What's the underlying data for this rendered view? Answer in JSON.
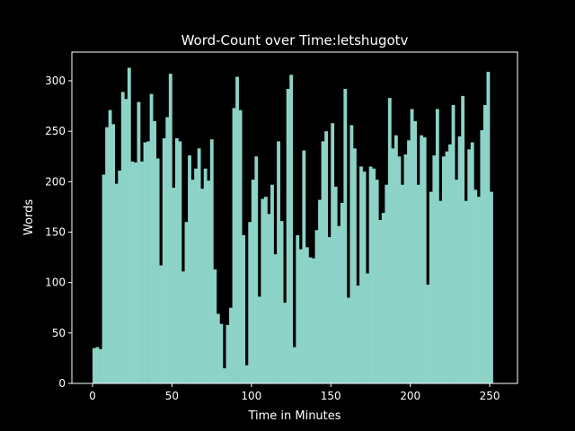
{
  "chart_data": {
    "type": "bar",
    "title": "Word-Count over Time:letshugotv",
    "x_label": "Time in Minutes",
    "y_label": "Words",
    "x": [
      0,
      2,
      4,
      6,
      8,
      10,
      12,
      14,
      16,
      18,
      20,
      22,
      24,
      26,
      28,
      30,
      32,
      34,
      36,
      38,
      40,
      42,
      44,
      46,
      48,
      50,
      52,
      54,
      56,
      58,
      60,
      62,
      64,
      66,
      68,
      70,
      72,
      74,
      76,
      78,
      80,
      82,
      84,
      86,
      88,
      90,
      92,
      94,
      96,
      98,
      100,
      102,
      104,
      106,
      108,
      110,
      112,
      114,
      116,
      118,
      120,
      122,
      124,
      126,
      128,
      130,
      132,
      134,
      136,
      138,
      140,
      142,
      144,
      146,
      148,
      150,
      152,
      154,
      156,
      158,
      160,
      162,
      164,
      166,
      168,
      170,
      172,
      174,
      176,
      178,
      180,
      182,
      184,
      186,
      188,
      190,
      192,
      194,
      196,
      198,
      200,
      202,
      204,
      206,
      208,
      210,
      212,
      214,
      216,
      218,
      220,
      222,
      224,
      226,
      228,
      230,
      232,
      234,
      236,
      238,
      240,
      242,
      244,
      246,
      248,
      250
    ],
    "values": [
      35,
      36,
      34,
      207,
      254,
      271,
      257,
      198,
      211,
      289,
      282,
      313,
      220,
      219,
      279,
      220,
      239,
      240,
      287,
      260,
      223,
      117,
      243,
      264,
      307,
      194,
      243,
      240,
      111,
      160,
      226,
      202,
      213,
      233,
      193,
      213,
      201,
      242,
      113,
      69,
      59,
      15,
      58,
      75,
      273,
      304,
      271,
      147,
      18,
      160,
      202,
      225,
      86,
      183,
      185,
      168,
      197,
      128,
      240,
      161,
      80,
      292,
      306,
      36,
      147,
      133,
      231,
      135,
      125,
      124,
      152,
      182,
      240,
      250,
      145,
      258,
      195,
      156,
      179,
      292,
      85,
      256,
      233,
      97,
      215,
      210,
      109,
      215,
      213,
      202,
      162,
      169,
      197,
      283,
      233,
      246,
      225,
      197,
      227,
      241,
      272,
      260,
      197,
      246,
      244,
      98,
      190,
      226,
      272,
      181,
      225,
      230,
      237,
      276,
      202,
      245,
      285,
      181,
      232,
      239,
      192,
      185,
      251,
      276,
      309,
      190
    ],
    "color": "#8dd3c7",
    "xlim": [
      -13,
      267.5
    ],
    "xticks": [
      0,
      50,
      100,
      150,
      200,
      250
    ],
    "ylim": [
      0,
      328.5
    ],
    "yticks": [
      0,
      50,
      100,
      150,
      200,
      250,
      300
    ]
  }
}
